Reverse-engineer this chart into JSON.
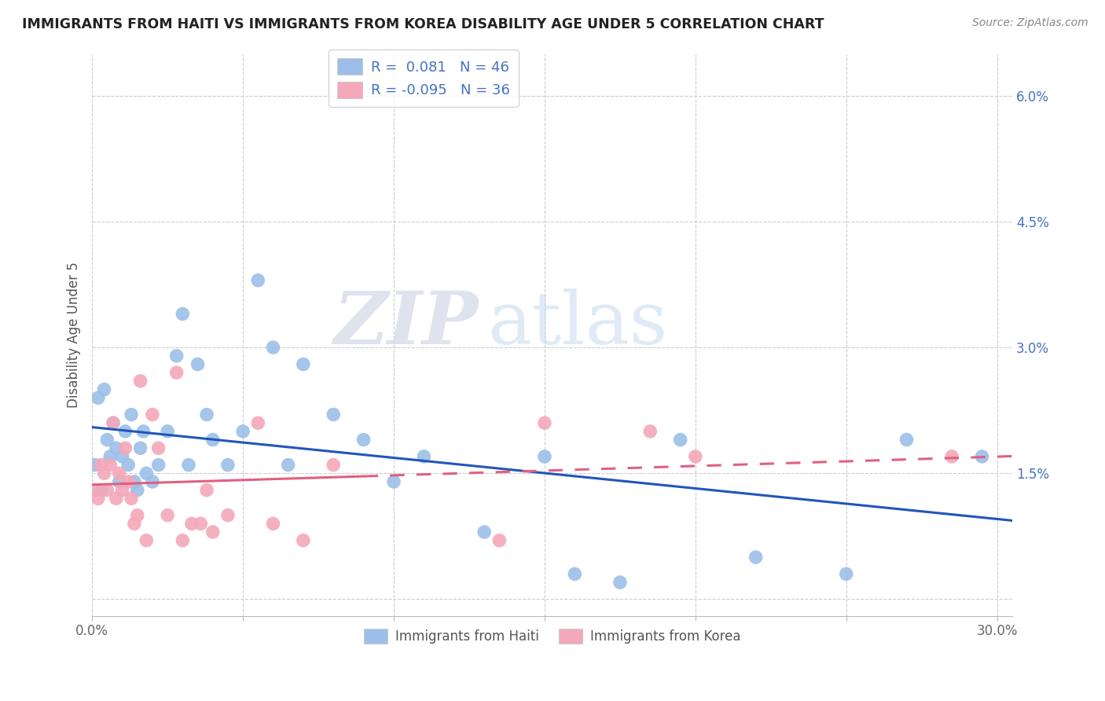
{
  "title": "IMMIGRANTS FROM HAITI VS IMMIGRANTS FROM KOREA DISABILITY AGE UNDER 5 CORRELATION CHART",
  "source": "Source: ZipAtlas.com",
  "ylabel": "Disability Age Under 5",
  "xlim": [
    0.0,
    0.305
  ],
  "ylim": [
    -0.002,
    0.065
  ],
  "xtick_vals": [
    0.0,
    0.05,
    0.1,
    0.15,
    0.2,
    0.25,
    0.3
  ],
  "xtick_labels": [
    "0.0%",
    "",
    "",
    "",
    "",
    "",
    "30.0%"
  ],
  "ytick_vals": [
    0.015,
    0.03,
    0.045,
    0.06
  ],
  "ytick_labels": [
    "1.5%",
    "3.0%",
    "4.5%",
    "6.0%"
  ],
  "haiti_R": 0.081,
  "haiti_N": 46,
  "korea_R": -0.095,
  "korea_N": 36,
  "haiti_color": "#9BBFE8",
  "korea_color": "#F4A8BA",
  "haiti_line_color": "#2255BB",
  "korea_line_color": "#E06080",
  "legend_haiti": "Immigrants from Haiti",
  "legend_korea": "Immigrants from Korea",
  "watermark_zip": "ZIP",
  "watermark_atlas": "atlas",
  "haiti_x": [
    0.001,
    0.002,
    0.003,
    0.004,
    0.005,
    0.006,
    0.007,
    0.008,
    0.009,
    0.01,
    0.011,
    0.012,
    0.013,
    0.014,
    0.015,
    0.016,
    0.017,
    0.018,
    0.02,
    0.022,
    0.025,
    0.028,
    0.03,
    0.032,
    0.035,
    0.038,
    0.04,
    0.045,
    0.05,
    0.055,
    0.06,
    0.065,
    0.07,
    0.08,
    0.09,
    0.1,
    0.11,
    0.13,
    0.15,
    0.16,
    0.175,
    0.195,
    0.22,
    0.25,
    0.27,
    0.295
  ],
  "haiti_y": [
    0.016,
    0.024,
    0.013,
    0.025,
    0.019,
    0.017,
    0.021,
    0.018,
    0.014,
    0.017,
    0.02,
    0.016,
    0.022,
    0.014,
    0.013,
    0.018,
    0.02,
    0.015,
    0.014,
    0.016,
    0.02,
    0.029,
    0.034,
    0.016,
    0.028,
    0.022,
    0.019,
    0.016,
    0.02,
    0.038,
    0.03,
    0.016,
    0.028,
    0.022,
    0.019,
    0.014,
    0.017,
    0.008,
    0.017,
    0.003,
    0.002,
    0.019,
    0.005,
    0.003,
    0.019,
    0.017
  ],
  "korea_x": [
    0.001,
    0.002,
    0.003,
    0.004,
    0.005,
    0.006,
    0.007,
    0.008,
    0.009,
    0.01,
    0.011,
    0.012,
    0.013,
    0.014,
    0.015,
    0.016,
    0.018,
    0.02,
    0.022,
    0.025,
    0.028,
    0.03,
    0.033,
    0.036,
    0.038,
    0.04,
    0.045,
    0.055,
    0.06,
    0.07,
    0.08,
    0.135,
    0.15,
    0.185,
    0.2,
    0.285
  ],
  "korea_y": [
    0.013,
    0.012,
    0.016,
    0.015,
    0.013,
    0.016,
    0.021,
    0.012,
    0.015,
    0.013,
    0.018,
    0.014,
    0.012,
    0.009,
    0.01,
    0.026,
    0.007,
    0.022,
    0.018,
    0.01,
    0.027,
    0.007,
    0.009,
    0.009,
    0.013,
    0.008,
    0.01,
    0.021,
    0.009,
    0.007,
    0.016,
    0.007,
    0.021,
    0.02,
    0.017,
    0.017
  ]
}
